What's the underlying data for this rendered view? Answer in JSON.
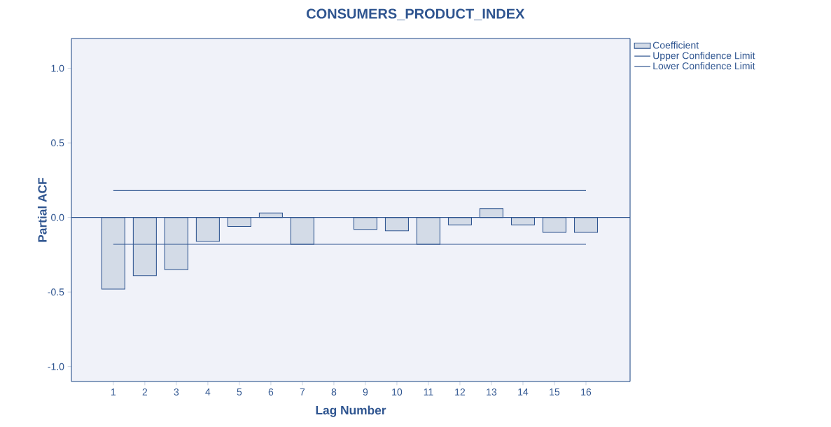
{
  "chart_data": {
    "type": "bar",
    "title": "CONSUMERS_PRODUCT_INDEX",
    "xlabel": "Lag Number",
    "ylabel": "Partial ACF",
    "categories": [
      "1",
      "2",
      "3",
      "4",
      "5",
      "6",
      "7",
      "8",
      "9",
      "10",
      "11",
      "12",
      "13",
      "14",
      "15",
      "16"
    ],
    "series": [
      {
        "name": "Coefficient",
        "color": "#d3dbe7",
        "values": [
          -0.48,
          -0.39,
          -0.35,
          -0.16,
          -0.06,
          0.03,
          -0.18,
          null,
          -0.08,
          -0.09,
          -0.18,
          -0.05,
          0.06,
          -0.05,
          -0.1,
          -0.1
        ]
      },
      {
        "name": "Upper Confidence Limit",
        "type": "line",
        "color": "#2f5590",
        "values": [
          0.18,
          0.18,
          0.18,
          0.18,
          0.18,
          0.18,
          0.18,
          0.18,
          0.18,
          0.18,
          0.18,
          0.18,
          0.18,
          0.18,
          0.18,
          0.18
        ]
      },
      {
        "name": "Lower Confidence Limit",
        "type": "line",
        "color": "#2f5590",
        "values": [
          -0.18,
          -0.18,
          -0.18,
          -0.18,
          -0.18,
          -0.18,
          -0.18,
          -0.18,
          -0.18,
          -0.18,
          -0.18,
          -0.18,
          -0.18,
          -0.18,
          -0.18,
          -0.18
        ]
      }
    ],
    "ylim": [
      -1.1,
      1.2
    ],
    "yticks": [
      {
        "value": -1,
        "label": "-1.0"
      },
      {
        "value": -0.5,
        "label": "-0.5"
      },
      {
        "value": 0,
        "label": "0.0"
      },
      {
        "value": 0.5,
        "label": "0.5"
      },
      {
        "value": 1,
        "label": "1.0"
      }
    ],
    "ref_lines": [
      {
        "axis": "y",
        "value": 0,
        "color": "#2f5590"
      }
    ],
    "legend": "top right",
    "grid": false
  }
}
